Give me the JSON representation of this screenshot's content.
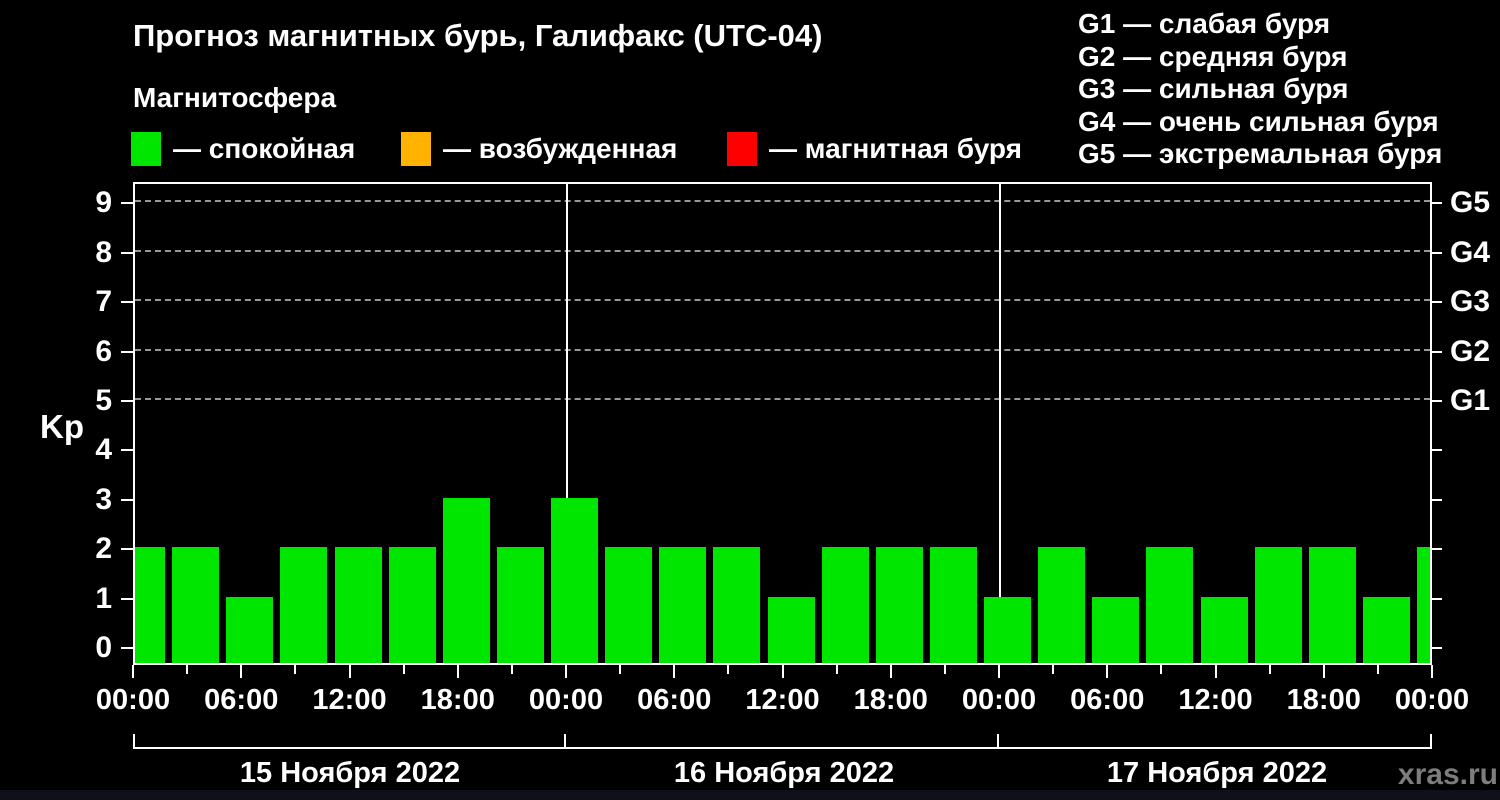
{
  "title": "Прогноз магнитных бурь, Галифакс (UTC-04)",
  "subtitle": "Магнитосфера",
  "watermark": "xras.ru",
  "colors": {
    "quiet": "#00e600",
    "excited": "#ffb300",
    "storm": "#ff0000",
    "grid": "#989898",
    "axis": "#ffffff",
    "watermark_gray": "#7d7d7d",
    "background": "#000000"
  },
  "legend": [
    {
      "label": "— спокойная",
      "color_key": "quiet"
    },
    {
      "label": "— возбужденная",
      "color_key": "excited"
    },
    {
      "label": "— магнитная буря",
      "color_key": "storm"
    }
  ],
  "g_legend": [
    {
      "label": "G1 — слабая буря"
    },
    {
      "label": "G2 — средняя буря"
    },
    {
      "label": "G3 — сильная буря"
    },
    {
      "label": "G4 — очень сильная буря"
    },
    {
      "label": "G5 — экстремальная буря"
    }
  ],
  "chart_data": {
    "type": "bar",
    "ylabel": "Kp",
    "ylim": [
      0,
      9
    ],
    "y_ticks": [
      0,
      1,
      2,
      3,
      4,
      5,
      6,
      7,
      8,
      9
    ],
    "gridlines_at": [
      5,
      6,
      7,
      8,
      9
    ],
    "grid_style": "dashed",
    "legend_position": "top",
    "right_axis": [
      {
        "kp": 5,
        "label": "G1"
      },
      {
        "kp": 6,
        "label": "G2"
      },
      {
        "kp": 7,
        "label": "G3"
      },
      {
        "kp": 8,
        "label": "G4"
      },
      {
        "kp": 9,
        "label": "G5"
      }
    ],
    "x_hours_step": 3,
    "x_tick_labels": [
      "00:00",
      "06:00",
      "12:00",
      "18:00",
      "00:00",
      "06:00",
      "12:00",
      "18:00",
      "00:00",
      "06:00",
      "12:00",
      "18:00",
      "00:00"
    ],
    "days": [
      {
        "date": "15 Ноября 2022",
        "values": [
          2,
          2,
          1,
          2,
          2,
          2,
          3,
          2
        ]
      },
      {
        "date": "16 Ноября 2022",
        "values": [
          3,
          2,
          2,
          2,
          1,
          2,
          2,
          2
        ]
      },
      {
        "date": "17 Ноября 2022",
        "values": [
          1,
          2,
          1,
          2,
          1,
          2,
          2,
          1
        ]
      }
    ],
    "trailing_value": 2,
    "bar_color_key": "quiet",
    "series_note": "Kp values every 3 hours, all bars green (quiet magnetosphere)"
  }
}
